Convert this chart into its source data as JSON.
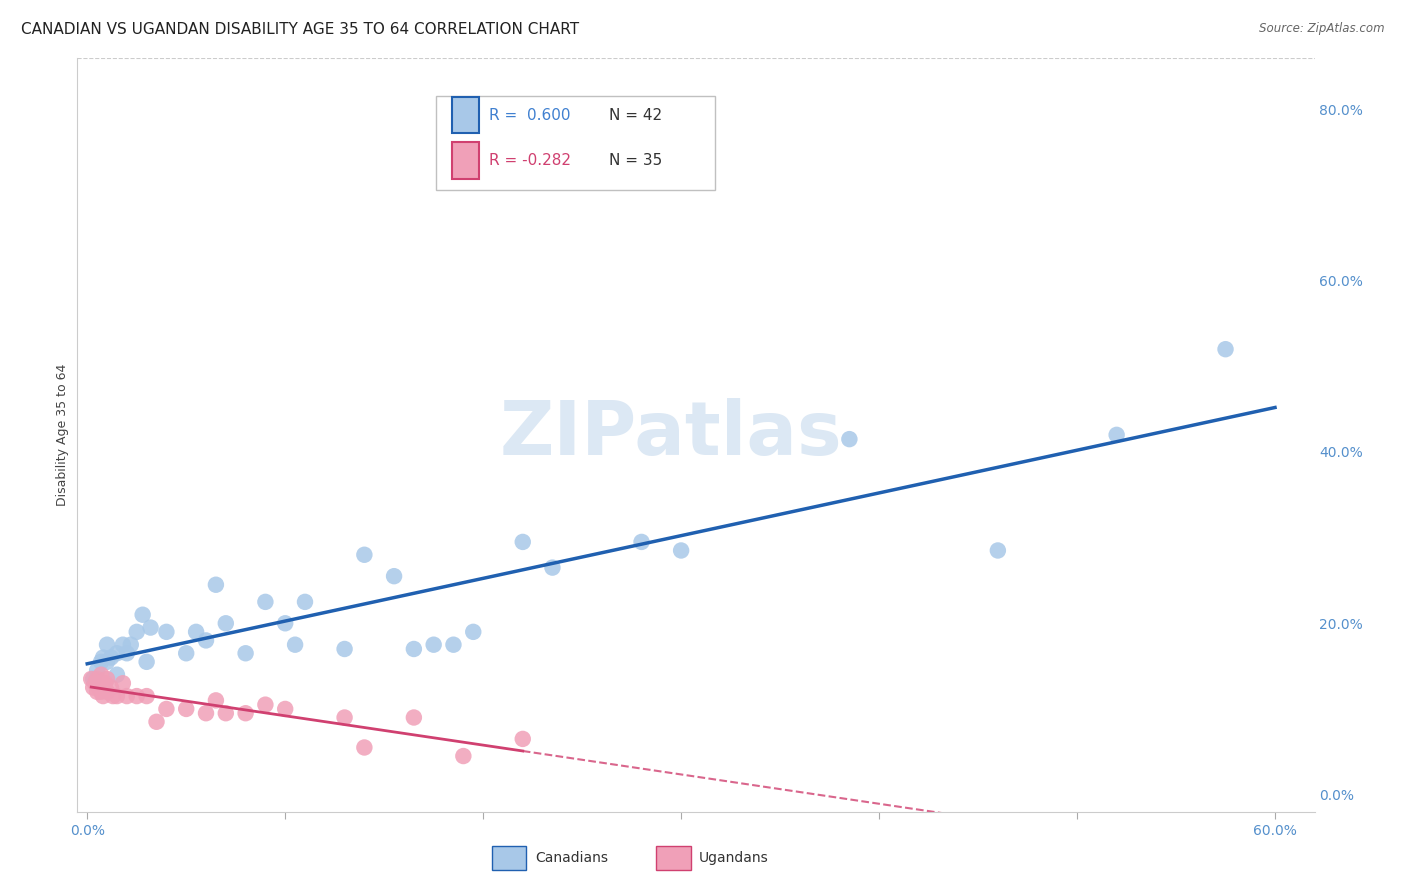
{
  "title": "CANADIAN VS UGANDAN DISABILITY AGE 35 TO 64 CORRELATION CHART",
  "source": "Source: ZipAtlas.com",
  "ylabel": "Disability Age 35 to 64",
  "xlim": [
    -0.005,
    0.62
  ],
  "ylim": [
    -0.02,
    0.86
  ],
  "yticks": [
    0.0,
    0.2,
    0.4,
    0.6,
    0.8
  ],
  "ytick_labels": [
    "0.0%",
    "20.0%",
    "40.0%",
    "60.0%",
    "80.0%"
  ],
  "xtick_positions": [
    0.0,
    0.1,
    0.2,
    0.3,
    0.4,
    0.5,
    0.6
  ],
  "xtick_labels": [
    "0.0%",
    "",
    "",
    "",
    "",
    "",
    "60.0%"
  ],
  "canadian_R": 0.6,
  "canadian_N": 42,
  "ugandan_R": -0.282,
  "ugandan_N": 35,
  "canadian_color": "#a8c8e8",
  "ugandan_color": "#f0a0b8",
  "trendline_canadian_color": "#2060b0",
  "trendline_ugandan_color": "#d04070",
  "legend_R_canadian_color": "#4080d0",
  "legend_R_ugandan_color": "#d04070",
  "legend_N_color": "#333333",
  "canadian_x": [
    0.003,
    0.005,
    0.007,
    0.008,
    0.01,
    0.01,
    0.012,
    0.015,
    0.015,
    0.018,
    0.02,
    0.022,
    0.025,
    0.028,
    0.03,
    0.032,
    0.04,
    0.05,
    0.055,
    0.06,
    0.065,
    0.07,
    0.08,
    0.09,
    0.1,
    0.105,
    0.11,
    0.13,
    0.14,
    0.155,
    0.165,
    0.175,
    0.185,
    0.195,
    0.22,
    0.235,
    0.28,
    0.3,
    0.385,
    0.46,
    0.52,
    0.575
  ],
  "canadian_y": [
    0.135,
    0.145,
    0.155,
    0.16,
    0.155,
    0.175,
    0.16,
    0.14,
    0.165,
    0.175,
    0.165,
    0.175,
    0.19,
    0.21,
    0.155,
    0.195,
    0.19,
    0.165,
    0.19,
    0.18,
    0.245,
    0.2,
    0.165,
    0.225,
    0.2,
    0.175,
    0.225,
    0.17,
    0.28,
    0.255,
    0.17,
    0.175,
    0.175,
    0.19,
    0.295,
    0.265,
    0.295,
    0.285,
    0.415,
    0.285,
    0.42,
    0.52
  ],
  "ugandan_x": [
    0.002,
    0.003,
    0.004,
    0.005,
    0.005,
    0.006,
    0.006,
    0.007,
    0.007,
    0.008,
    0.008,
    0.009,
    0.01,
    0.01,
    0.012,
    0.013,
    0.015,
    0.018,
    0.02,
    0.025,
    0.03,
    0.035,
    0.04,
    0.05,
    0.06,
    0.065,
    0.07,
    0.08,
    0.09,
    0.1,
    0.13,
    0.14,
    0.165,
    0.19,
    0.22
  ],
  "ugandan_y": [
    0.135,
    0.125,
    0.13,
    0.135,
    0.12,
    0.13,
    0.125,
    0.14,
    0.12,
    0.13,
    0.115,
    0.13,
    0.12,
    0.135,
    0.125,
    0.115,
    0.115,
    0.13,
    0.115,
    0.115,
    0.115,
    0.085,
    0.1,
    0.1,
    0.095,
    0.11,
    0.095,
    0.095,
    0.105,
    0.1,
    0.09,
    0.055,
    0.09,
    0.045,
    0.065
  ],
  "background_color": "#ffffff",
  "grid_color": "#cccccc",
  "watermark_text": "ZIPatlas",
  "title_fontsize": 11,
  "axis_label_fontsize": 9,
  "tick_fontsize": 10,
  "tick_color": "#5590cc",
  "legend_fontsize": 10,
  "ugandan_trendline_dash_end": 0.44,
  "canadian_trendline_start": 0.0,
  "canadian_trendline_end": 0.6
}
